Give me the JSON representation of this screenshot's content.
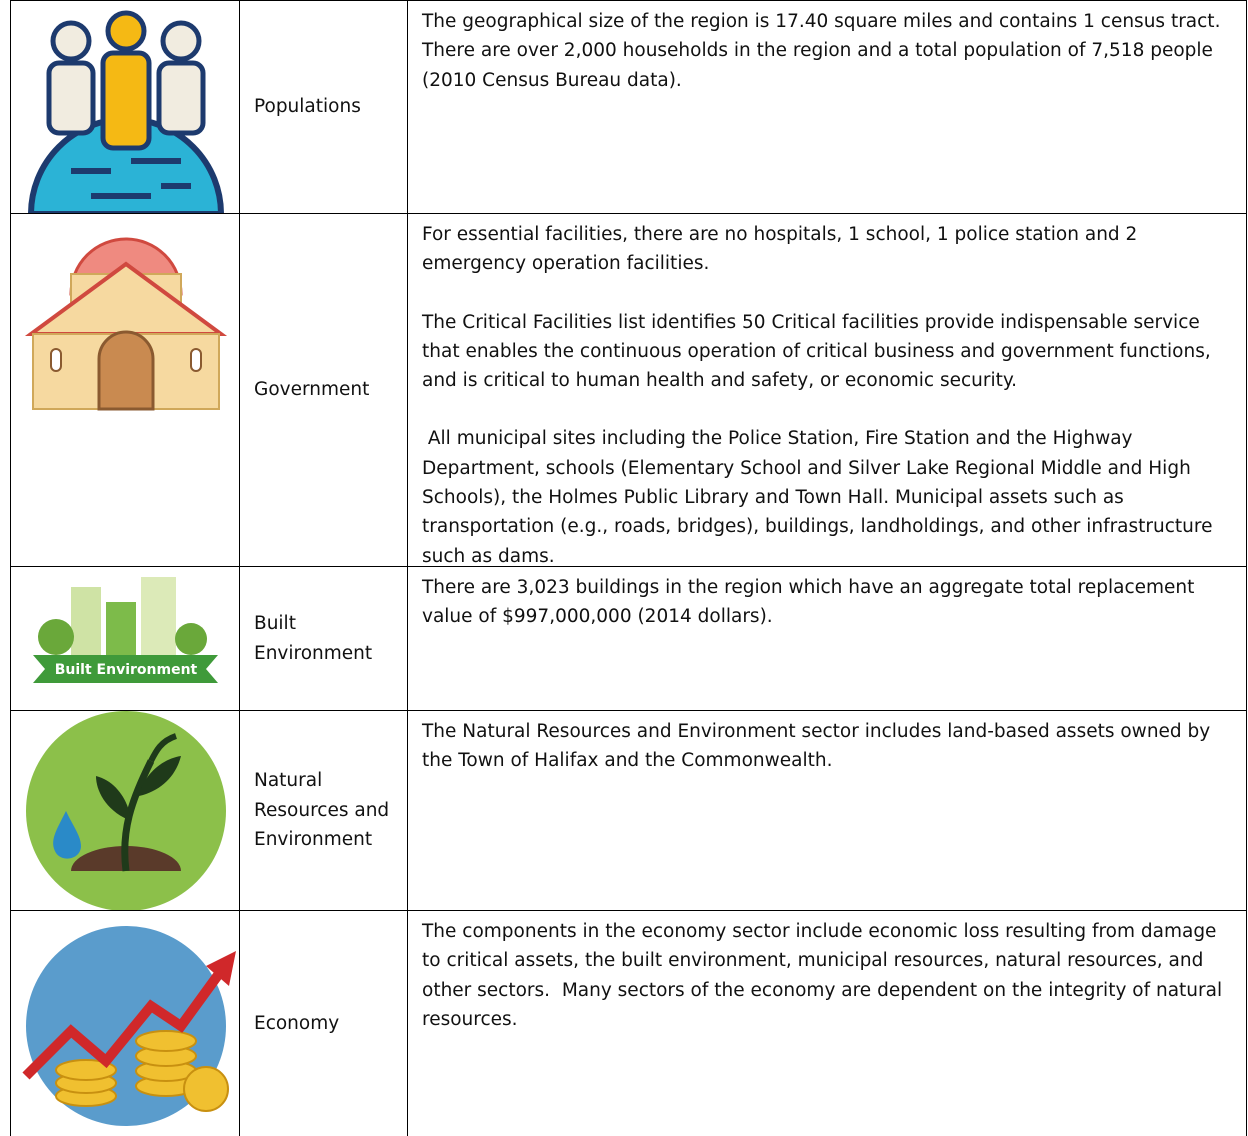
{
  "table": {
    "rows": [
      {
        "label": "Populations",
        "paragraphs": [
          "The geographical size of the region is 17.40 square miles and contains 1 census tract.  There are over 2,000 households in the region and a total population of 7,518 people (2010 Census Bureau data)."
        ]
      },
      {
        "label": "Government",
        "paragraphs": [
          "For essential facilities, there are no hospitals, 1 school, 1 police station and 2 emergency operation facilities.",
          "The Critical Facilities list identifies 50 Critical facilities provide indispensable service that enables the continuous operation of critical business and government functions, and is critical to human health and safety, or economic security.",
          " All municipal sites including the Police Station, Fire Station and the Highway Department, schools (Elementary School and Silver Lake Regional Middle and High Schools), the Holmes Public Library and Town Hall. Municipal assets such as transportation (e.g., roads, bridges), buildings, landholdings, and other infrastructure such as dams."
        ]
      },
      {
        "label": "Built Environment",
        "icon_label": "Built Environment",
        "paragraphs": [
          "There are 3,023 buildings in the region which have an aggregate total replacement value of $997,000,000 (2014 dollars)."
        ]
      },
      {
        "label": "Natural Resources and Environment",
        "paragraphs": [
          "The Natural Resources and Environment sector includes land-based assets owned by the Town of Halifax and the Commonwealth."
        ]
      },
      {
        "label": "Economy",
        "paragraphs": [
          "The components in the economy sector include economic loss resulting from damage to critical assets, the built environment, municipal resources, natural resources, and other sectors.  Many sectors of the economy are dependent on the integrity of natural resources."
        ]
      }
    ]
  }
}
